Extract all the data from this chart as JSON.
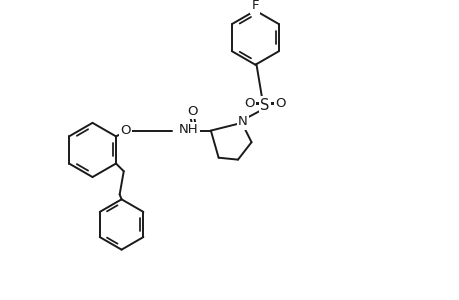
{
  "background_color": "#ffffff",
  "line_color": "#1a1a1a",
  "line_width": 1.4,
  "font_size": 9.5,
  "fig_width": 4.6,
  "fig_height": 3.0,
  "dpi": 100,
  "xlim": [
    0,
    460
  ],
  "ylim": [
    0,
    300
  ]
}
